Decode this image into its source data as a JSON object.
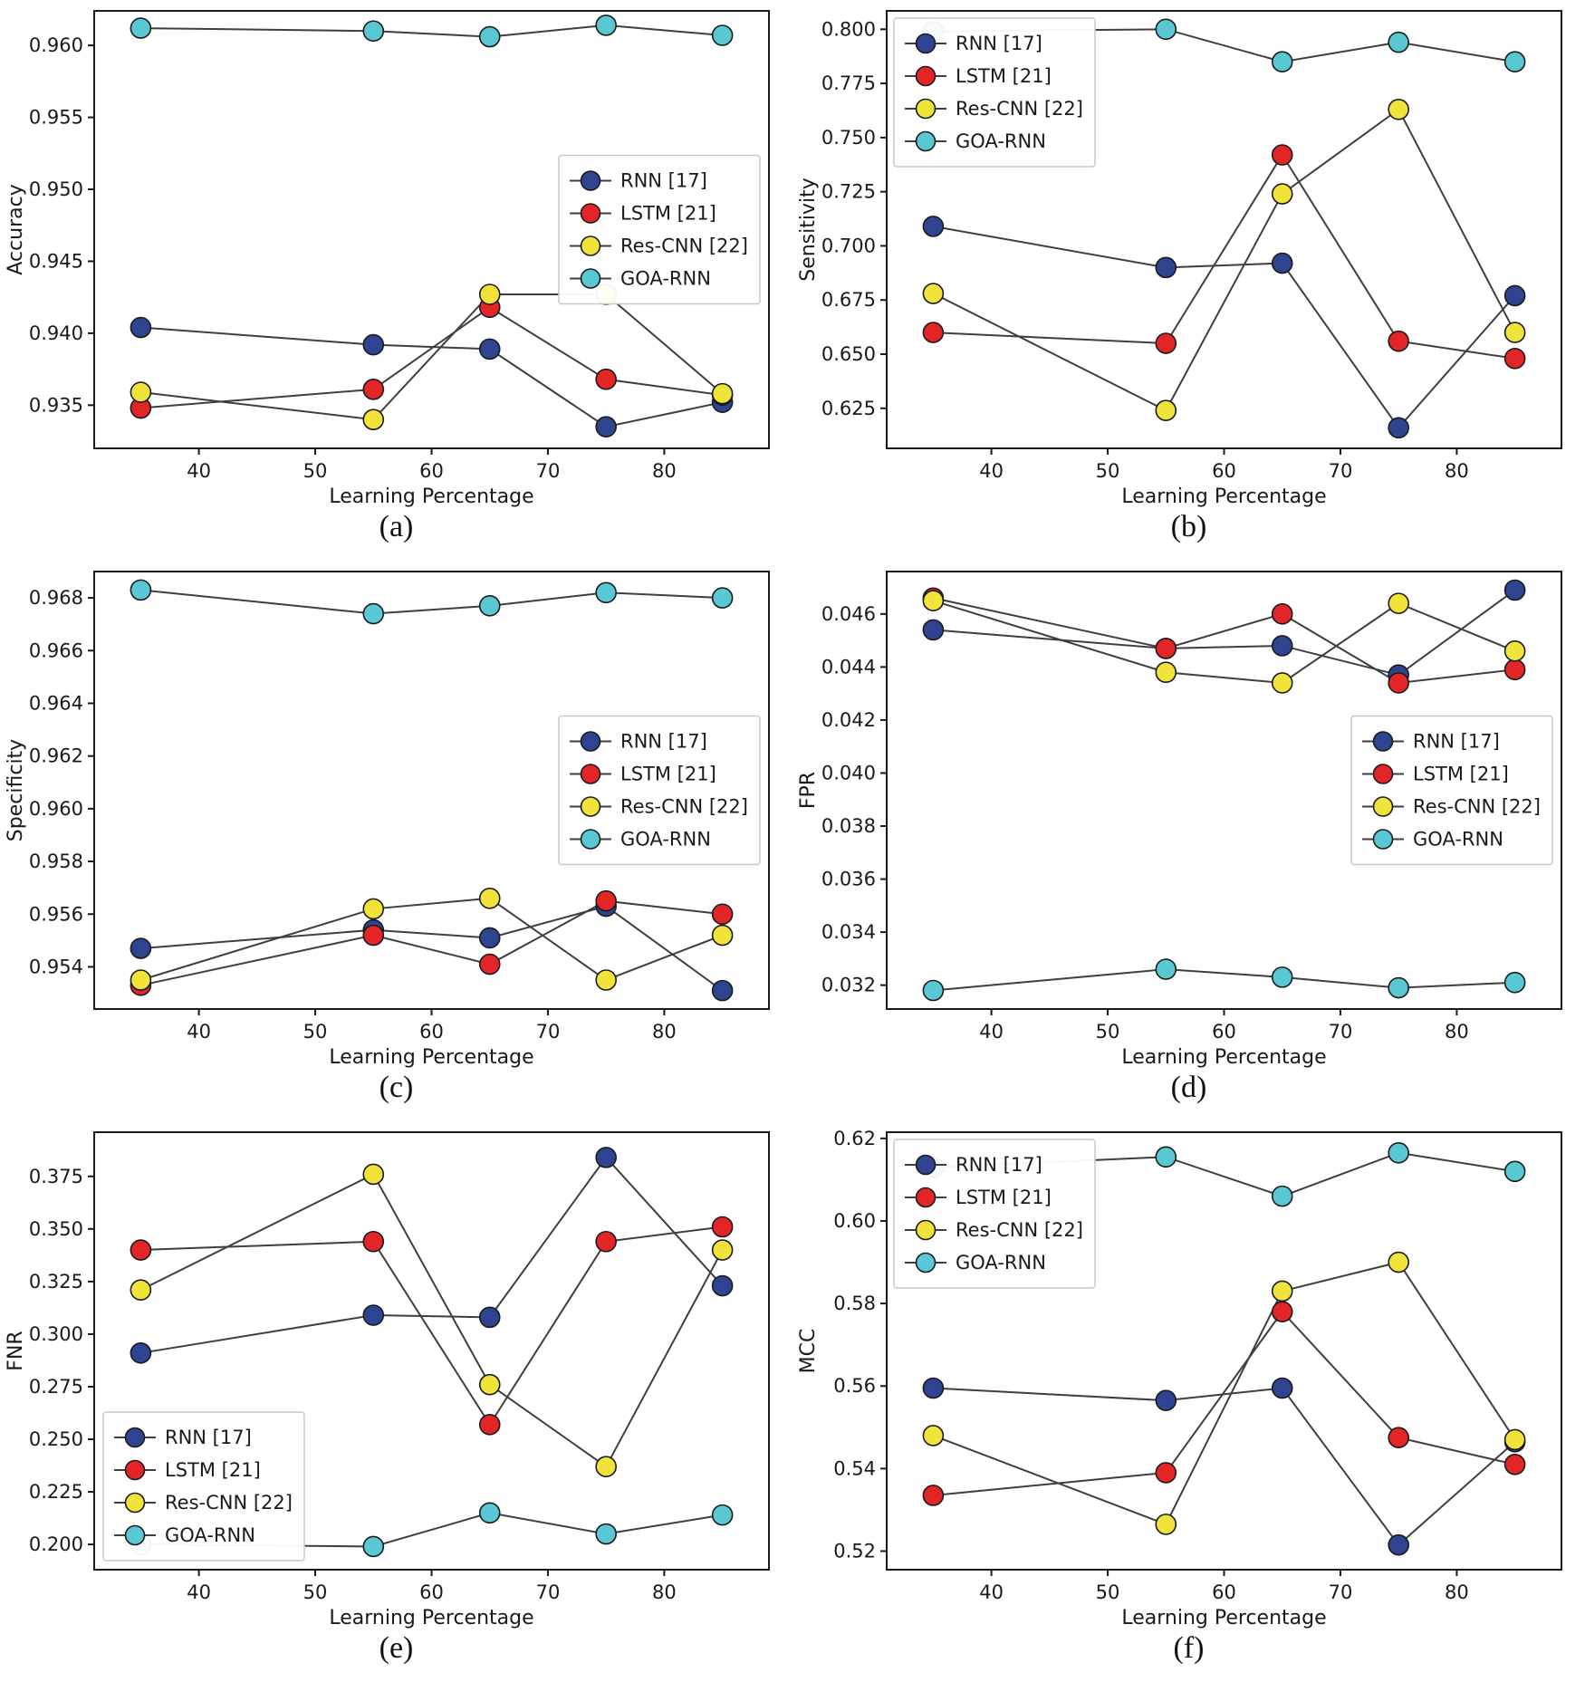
{
  "figure": {
    "background": "#ffffff",
    "axis_color": "#1a1a1a",
    "line_color": "#3f3f3f",
    "marker_edge": "#1a1a1a",
    "series_colors": {
      "rnn": "#2e4491",
      "lstm": "#e42528",
      "res_cnn": "#f2e33b",
      "goa_rnn": "#58c8d5"
    }
  },
  "chart_data": [
    {
      "id": "a",
      "caption": "(a)",
      "type": "line",
      "xlabel": "Learning Percentage",
      "ylabel": "Accuracy",
      "x": [
        35,
        55,
        65,
        75,
        85
      ],
      "xlim": [
        31,
        89
      ],
      "ylim": [
        0.932,
        0.9624
      ],
      "xtick_values": [
        40,
        50,
        60,
        70,
        80
      ],
      "xtick_labels": [
        "40",
        "50",
        "60",
        "70",
        "80"
      ],
      "ytick_values": [
        0.935,
        0.94,
        0.945,
        0.95,
        0.955,
        0.96
      ],
      "ytick_labels": [
        "0.935",
        "0.940",
        "0.945",
        "0.950",
        "0.955",
        "0.960"
      ],
      "legend_pos": "center-right",
      "grid": false,
      "series": [
        {
          "name": "RNN [17]",
          "color": "#2e4491",
          "values": [
            0.9404,
            0.9392,
            0.9389,
            0.9335,
            0.9352
          ]
        },
        {
          "name": "LSTM [21]",
          "color": "#e42528",
          "values": [
            0.9348,
            0.9361,
            0.9418,
            0.9368,
            0.9357
          ]
        },
        {
          "name": "Res-CNN [22]",
          "color": "#f2e33b",
          "values": [
            0.9359,
            0.934,
            0.9427,
            0.9427,
            0.9358
          ]
        },
        {
          "name": "GOA-RNN",
          "color": "#58c8d5",
          "values": [
            0.9612,
            0.961,
            0.9606,
            0.9614,
            0.9607
          ]
        }
      ]
    },
    {
      "id": "b",
      "caption": "(b)",
      "type": "line",
      "xlabel": "Learning Percentage",
      "ylabel": "Sensitivity",
      "x": [
        35,
        55,
        65,
        75,
        85
      ],
      "xlim": [
        31,
        89
      ],
      "ylim": [
        0.6065,
        0.8085
      ],
      "xtick_values": [
        40,
        50,
        60,
        70,
        80
      ],
      "xtick_labels": [
        "40",
        "50",
        "60",
        "70",
        "80"
      ],
      "ytick_values": [
        0.625,
        0.65,
        0.675,
        0.7,
        0.725,
        0.75,
        0.775,
        0.8
      ],
      "ytick_labels": [
        "0.625",
        "0.650",
        "0.675",
        "0.700",
        "0.725",
        "0.750",
        "0.775",
        "0.800"
      ],
      "legend_pos": "top-left",
      "grid": false,
      "series": [
        {
          "name": "RNN [17]",
          "color": "#2e4491",
          "values": [
            0.709,
            0.69,
            0.692,
            0.616,
            0.677
          ]
        },
        {
          "name": "LSTM [21]",
          "color": "#e42528",
          "values": [
            0.66,
            0.655,
            0.742,
            0.656,
            0.648
          ]
        },
        {
          "name": "Res-CNN [22]",
          "color": "#f2e33b",
          "values": [
            0.678,
            0.624,
            0.724,
            0.763,
            0.66
          ]
        },
        {
          "name": "GOA-RNN",
          "color": "#58c8d5",
          "values": [
            0.799,
            0.8,
            0.785,
            0.794,
            0.785
          ]
        }
      ]
    },
    {
      "id": "c",
      "caption": "(c)",
      "type": "line",
      "xlabel": "Learning Percentage",
      "ylabel": "Specificity",
      "x": [
        35,
        55,
        65,
        75,
        85
      ],
      "xlim": [
        31,
        89
      ],
      "ylim": [
        0.9524,
        0.969
      ],
      "xtick_values": [
        40,
        50,
        60,
        70,
        80
      ],
      "xtick_labels": [
        "40",
        "50",
        "60",
        "70",
        "80"
      ],
      "ytick_values": [
        0.954,
        0.956,
        0.958,
        0.96,
        0.962,
        0.964,
        0.966,
        0.968
      ],
      "ytick_labels": [
        "0.954",
        "0.956",
        "0.958",
        "0.960",
        "0.962",
        "0.964",
        "0.966",
        "0.968"
      ],
      "legend_pos": "center-right",
      "grid": false,
      "series": [
        {
          "name": "RNN [17]",
          "color": "#2e4491",
          "values": [
            0.9547,
            0.9554,
            0.9551,
            0.9563,
            0.9531
          ]
        },
        {
          "name": "LSTM [21]",
          "color": "#e42528",
          "values": [
            0.9533,
            0.9552,
            0.9541,
            0.9565,
            0.956
          ]
        },
        {
          "name": "Res-CNN [22]",
          "color": "#f2e33b",
          "values": [
            0.9535,
            0.9562,
            0.9566,
            0.9535,
            0.9552
          ]
        },
        {
          "name": "GOA-RNN",
          "color": "#58c8d5",
          "values": [
            0.9683,
            0.9674,
            0.9677,
            0.9682,
            0.968
          ]
        }
      ]
    },
    {
      "id": "d",
      "caption": "(d)",
      "type": "line",
      "xlabel": "Learning Percentage",
      "ylabel": "FPR",
      "x": [
        35,
        55,
        65,
        75,
        85
      ],
      "xlim": [
        31,
        89
      ],
      "ylim": [
        0.0311,
        0.0476
      ],
      "xtick_values": [
        40,
        50,
        60,
        70,
        80
      ],
      "xtick_labels": [
        "40",
        "50",
        "60",
        "70",
        "80"
      ],
      "ytick_values": [
        0.032,
        0.034,
        0.036,
        0.038,
        0.04,
        0.042,
        0.044,
        0.046
      ],
      "ytick_labels": [
        "0.032",
        "0.034",
        "0.036",
        "0.038",
        "0.040",
        "0.042",
        "0.044",
        "0.046"
      ],
      "legend_pos": "center-right",
      "grid": false,
      "series": [
        {
          "name": "RNN [17]",
          "color": "#2e4491",
          "values": [
            0.0454,
            0.0447,
            0.0448,
            0.0437,
            0.0469
          ]
        },
        {
          "name": "LSTM [21]",
          "color": "#e42528",
          "values": [
            0.0466,
            0.0447,
            0.046,
            0.0434,
            0.0439
          ]
        },
        {
          "name": "Res-CNN [22]",
          "color": "#f2e33b",
          "values": [
            0.0465,
            0.0438,
            0.0434,
            0.0464,
            0.0446
          ]
        },
        {
          "name": "GOA-RNN",
          "color": "#58c8d5",
          "values": [
            0.0318,
            0.0326,
            0.0323,
            0.0319,
            0.0321
          ]
        }
      ]
    },
    {
      "id": "e",
      "caption": "(e)",
      "type": "line",
      "xlabel": "Learning Percentage",
      "ylabel": "FNR",
      "x": [
        35,
        55,
        65,
        75,
        85
      ],
      "xlim": [
        31,
        89
      ],
      "ylim": [
        0.188,
        0.396
      ],
      "xtick_values": [
        40,
        50,
        60,
        70,
        80
      ],
      "xtick_labels": [
        "40",
        "50",
        "60",
        "70",
        "80"
      ],
      "ytick_values": [
        0.2,
        0.225,
        0.25,
        0.275,
        0.3,
        0.325,
        0.35,
        0.375
      ],
      "ytick_labels": [
        "0.200",
        "0.225",
        "0.250",
        "0.275",
        "0.300",
        "0.325",
        "0.350",
        "0.375"
      ],
      "legend_pos": "bottom-left",
      "grid": false,
      "series": [
        {
          "name": "RNN [17]",
          "color": "#2e4491",
          "values": [
            0.291,
            0.309,
            0.308,
            0.384,
            0.323
          ]
        },
        {
          "name": "LSTM [21]",
          "color": "#e42528",
          "values": [
            0.34,
            0.344,
            0.257,
            0.344,
            0.351
          ]
        },
        {
          "name": "Res-CNN [22]",
          "color": "#f2e33b",
          "values": [
            0.321,
            0.376,
            0.276,
            0.237,
            0.34
          ]
        },
        {
          "name": "GOA-RNN",
          "color": "#58c8d5",
          "values": [
            0.2,
            0.199,
            0.215,
            0.205,
            0.214
          ]
        }
      ]
    },
    {
      "id": "f",
      "caption": "(f)",
      "type": "line",
      "xlabel": "Learning Percentage",
      "ylabel": "MCC",
      "x": [
        35,
        55,
        65,
        75,
        85
      ],
      "xlim": [
        31,
        89
      ],
      "ylim": [
        0.5155,
        0.6215
      ],
      "xtick_values": [
        40,
        50,
        60,
        70,
        80
      ],
      "xtick_labels": [
        "40",
        "50",
        "60",
        "70",
        "80"
      ],
      "ytick_values": [
        0.52,
        0.54,
        0.56,
        0.58,
        0.6,
        0.62
      ],
      "ytick_labels": [
        "0.52",
        "0.54",
        "0.56",
        "0.58",
        "0.60",
        "0.62"
      ],
      "legend_pos": "top-left",
      "grid": false,
      "series": [
        {
          "name": "RNN [17]",
          "color": "#2e4491",
          "values": [
            0.5595,
            0.5565,
            0.5595,
            0.5215,
            0.5465
          ]
        },
        {
          "name": "LSTM [21]",
          "color": "#e42528",
          "values": [
            0.5335,
            0.539,
            0.578,
            0.5475,
            0.541
          ]
        },
        {
          "name": "Res-CNN [22]",
          "color": "#f2e33b",
          "values": [
            0.548,
            0.5265,
            0.583,
            0.59,
            0.547
          ]
        },
        {
          "name": "GOA-RNN",
          "color": "#58c8d5",
          "values": [
            0.613,
            0.6155,
            0.606,
            0.6165,
            0.612
          ]
        }
      ]
    }
  ]
}
